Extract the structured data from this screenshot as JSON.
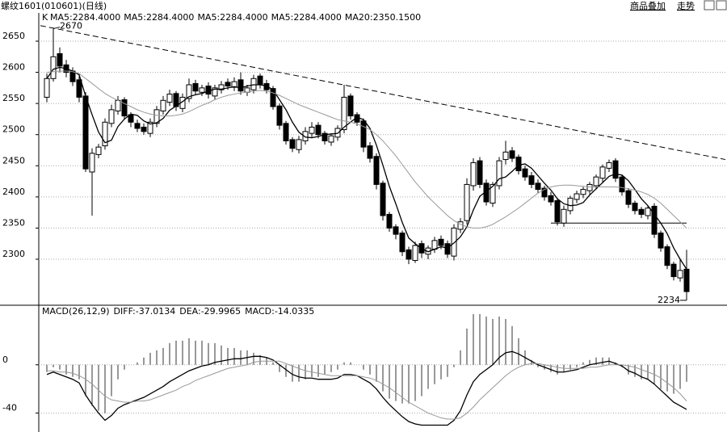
{
  "header": {
    "title": "螺纹1601(010601)(日线)",
    "buttons": [
      "商品叠加",
      "走势"
    ]
  },
  "chart_data": [
    {
      "type": "candlestick",
      "legend": [
        {
          "text": "K",
          "color": "#000000"
        },
        {
          "text": "MA5:2284.4000",
          "color": "#000000"
        },
        {
          "text": "MA5:2284.4000",
          "color": "#888888"
        },
        {
          "text": "MA5:2284.4000",
          "color": "#000000"
        },
        {
          "text": "MA5:2284.4000",
          "color": "#000000"
        },
        {
          "text": "MA20:2350.1500",
          "color": "#888888"
        }
      ],
      "ylim": [
        2230,
        2685
      ],
      "yticks": [
        2300,
        2350,
        2400,
        2450,
        2500,
        2550,
        2600,
        2650
      ],
      "grid": true,
      "up_color": "#ffffff",
      "down_color": "#000000",
      "open": [
        2560,
        2590,
        2630,
        2612,
        2602,
        2588,
        2562,
        2440,
        2468,
        2482,
        2518,
        2538,
        2556,
        2532,
        2518,
        2512,
        2502,
        2518,
        2538,
        2552,
        2566,
        2542,
        2558,
        2582,
        2568,
        2578,
        2562,
        2572,
        2584,
        2576,
        2588,
        2568,
        2572,
        2594,
        2582,
        2574,
        2546,
        2518,
        2492,
        2476,
        2490,
        2502,
        2515,
        2502,
        2488,
        2496,
        2508,
        2562,
        2532,
        2522,
        2482,
        2465,
        2422,
        2372,
        2352,
        2342,
        2315,
        2298,
        2325,
        2308,
        2316,
        2332,
        2325,
        2305,
        2348,
        2362,
        2418,
        2458,
        2422,
        2390,
        2418,
        2460,
        2474,
        2464,
        2445,
        2434,
        2422,
        2414,
        2402,
        2394,
        2358,
        2378,
        2396,
        2404,
        2410,
        2418,
        2430,
        2446,
        2458,
        2432,
        2410,
        2390,
        2380,
        2370,
        2385,
        2342,
        2320,
        2292,
        2270,
        2284
      ],
      "high": [
        2598,
        2670,
        2640,
        2620,
        2608,
        2594,
        2568,
        2478,
        2485,
        2526,
        2548,
        2562,
        2560,
        2536,
        2524,
        2518,
        2526,
        2546,
        2562,
        2572,
        2570,
        2566,
        2590,
        2588,
        2580,
        2584,
        2580,
        2586,
        2590,
        2592,
        2600,
        2580,
        2596,
        2598,
        2588,
        2578,
        2550,
        2522,
        2496,
        2498,
        2512,
        2520,
        2520,
        2506,
        2502,
        2515,
        2580,
        2566,
        2536,
        2526,
        2488,
        2470,
        2426,
        2376,
        2356,
        2346,
        2320,
        2328,
        2330,
        2322,
        2336,
        2338,
        2330,
        2356,
        2366,
        2430,
        2462,
        2464,
        2428,
        2424,
        2464,
        2490,
        2480,
        2468,
        2450,
        2440,
        2428,
        2418,
        2408,
        2398,
        2386,
        2402,
        2410,
        2416,
        2424,
        2436,
        2452,
        2460,
        2462,
        2436,
        2414,
        2394,
        2384,
        2386,
        2390,
        2346,
        2324,
        2296,
        2300,
        2315
      ],
      "low": [
        2552,
        2585,
        2600,
        2592,
        2578,
        2552,
        2440,
        2370,
        2462,
        2476,
        2512,
        2532,
        2524,
        2512,
        2504,
        2500,
        2496,
        2512,
        2532,
        2546,
        2538,
        2536,
        2552,
        2564,
        2562,
        2558,
        2556,
        2566,
        2572,
        2570,
        2564,
        2562,
        2566,
        2574,
        2566,
        2540,
        2508,
        2484,
        2472,
        2470,
        2484,
        2496,
        2494,
        2484,
        2482,
        2490,
        2502,
        2524,
        2514,
        2472,
        2455,
        2412,
        2362,
        2344,
        2332,
        2305,
        2292,
        2294,
        2302,
        2300,
        2310,
        2316,
        2302,
        2298,
        2342,
        2356,
        2410,
        2414,
        2386,
        2384,
        2412,
        2452,
        2456,
        2436,
        2426,
        2414,
        2406,
        2394,
        2386,
        2354,
        2352,
        2372,
        2390,
        2398,
        2404,
        2412,
        2424,
        2440,
        2424,
        2402,
        2382,
        2372,
        2366,
        2364,
        2334,
        2312,
        2284,
        2266,
        2264,
        2234
      ],
      "close": [
        2590,
        2625,
        2610,
        2600,
        2585,
        2560,
        2445,
        2470,
        2480,
        2520,
        2540,
        2555,
        2530,
        2520,
        2510,
        2505,
        2520,
        2540,
        2555,
        2565,
        2545,
        2560,
        2580,
        2570,
        2575,
        2565,
        2575,
        2580,
        2578,
        2585,
        2570,
        2575,
        2590,
        2580,
        2572,
        2545,
        2515,
        2490,
        2478,
        2492,
        2505,
        2512,
        2500,
        2490,
        2498,
        2510,
        2560,
        2530,
        2520,
        2480,
        2462,
        2420,
        2370,
        2350,
        2340,
        2312,
        2300,
        2322,
        2310,
        2318,
        2330,
        2322,
        2308,
        2350,
        2360,
        2420,
        2455,
        2420,
        2392,
        2420,
        2458,
        2472,
        2462,
        2442,
        2432,
        2420,
        2412,
        2400,
        2392,
        2360,
        2380,
        2398,
        2405,
        2412,
        2420,
        2432,
        2448,
        2455,
        2430,
        2408,
        2388,
        2378,
        2372,
        2382,
        2340,
        2318,
        2290,
        2272,
        2282,
        2248
      ],
      "series": [
        {
          "color": "#000000",
          "values": [
            2590,
            2605,
            2608,
            2606,
            2602,
            2596,
            2562,
            2532,
            2504,
            2487,
            2491,
            2513,
            2525,
            2533,
            2531,
            2522,
            2517,
            2519,
            2526,
            2539,
            2546,
            2553,
            2561,
            2564,
            2566,
            2570,
            2573,
            2573,
            2575,
            2577,
            2575,
            2578,
            2580,
            2580,
            2578,
            2572,
            2556,
            2540,
            2520,
            2504,
            2496,
            2495,
            2497,
            2500,
            2501,
            2502,
            2512,
            2520,
            2528,
            2524,
            2510,
            2483,
            2451,
            2417,
            2389,
            2359,
            2334,
            2325,
            2317,
            2312,
            2316,
            2320,
            2318,
            2326,
            2336,
            2352,
            2379,
            2401,
            2409,
            2417,
            2429,
            2432,
            2441,
            2451,
            2453,
            2446,
            2434,
            2422,
            2411,
            2397,
            2389,
            2386,
            2387,
            2391,
            2403,
            2413,
            2423,
            2433,
            2437,
            2435,
            2426,
            2412,
            2397,
            2386,
            2372,
            2358,
            2341,
            2318,
            2300,
            2284
          ]
        },
        {
          "color": "#999999",
          "values": [
            2600,
            2601,
            2602,
            2602,
            2601,
            2598,
            2590,
            2582,
            2574,
            2566,
            2560,
            2555,
            2550,
            2545,
            2540,
            2536,
            2533,
            2531,
            2530,
            2530,
            2531,
            2533,
            2537,
            2542,
            2547,
            2551,
            2556,
            2560,
            2563,
            2565,
            2567,
            2568,
            2570,
            2571,
            2570,
            2567,
            2563,
            2558,
            2553,
            2548,
            2544,
            2540,
            2536,
            2532,
            2528,
            2524,
            2522,
            2520,
            2517,
            2513,
            2508,
            2500,
            2490,
            2478,
            2466,
            2452,
            2438,
            2424,
            2412,
            2400,
            2390,
            2380,
            2370,
            2362,
            2356,
            2352,
            2350,
            2350,
            2352,
            2356,
            2362,
            2368,
            2375,
            2382,
            2390,
            2398,
            2406,
            2412,
            2416,
            2418,
            2419,
            2419,
            2418,
            2417,
            2416,
            2416,
            2416,
            2416,
            2416,
            2415,
            2413,
            2411,
            2408,
            2404,
            2398,
            2390,
            2380,
            2370,
            2360,
            2350
          ]
        }
      ],
      "trend_line": {
        "x": [
          -1,
          105
        ],
        "y": [
          2675,
          2460
        ],
        "color": "#000000"
      },
      "support_line": {
        "x": [
          78,
          99
        ],
        "y": [
          2358,
          2358
        ],
        "color": "#000000"
      },
      "annotations": [
        {
          "label": "2670",
          "x": 1,
          "y": 2670
        },
        {
          "label": "2234",
          "x": 99,
          "y": 2234
        }
      ]
    },
    {
      "type": "macd",
      "legend": [
        "MACD(26,12,9)",
        "DIFF:-37.0134",
        "DEA:-29.9965",
        "MACD:-14.0335"
      ],
      "ylim": [
        -55,
        48
      ],
      "yticks": [
        -40,
        0
      ],
      "series": [
        {
          "color": "#000000",
          "values": [
            -8,
            -6,
            -8,
            -10,
            -12,
            -15,
            -25,
            -33,
            -40,
            -46,
            -42,
            -36,
            -33,
            -31,
            -29,
            -27,
            -24,
            -21,
            -18,
            -14,
            -11,
            -8,
            -5,
            -3,
            -1,
            0,
            2,
            3,
            4,
            5,
            5,
            6,
            7,
            7,
            6,
            4,
            0,
            -4,
            -8,
            -10,
            -11,
            -11,
            -12,
            -12,
            -12,
            -11,
            -8,
            -8,
            -9,
            -12,
            -15,
            -20,
            -27,
            -33,
            -38,
            -43,
            -47,
            -49,
            -50,
            -50,
            -50,
            -50,
            -50,
            -46,
            -38,
            -25,
            -14,
            -8,
            -4,
            0,
            6,
            10,
            11,
            9,
            6,
            3,
            0,
            -2,
            -4,
            -6,
            -6,
            -5,
            -4,
            -2,
            0,
            1,
            2,
            3,
            1,
            -1,
            -5,
            -7,
            -10,
            -12,
            -16,
            -21,
            -26,
            -31,
            -34,
            -37
          ]
        },
        {
          "color": "#999999",
          "values": [
            -5,
            -5,
            -6,
            -6,
            -7,
            -9,
            -12,
            -16,
            -21,
            -26,
            -29,
            -30,
            -31,
            -31,
            -30,
            -30,
            -29,
            -27,
            -25,
            -23,
            -21,
            -18,
            -16,
            -13,
            -11,
            -9,
            -7,
            -5,
            -3,
            -2,
            -1,
            0,
            2,
            3,
            3,
            3,
            3,
            1,
            -1,
            -3,
            -5,
            -6,
            -7,
            -8,
            -9,
            -9,
            -9,
            -9,
            -9,
            -10,
            -11,
            -13,
            -16,
            -19,
            -23,
            -27,
            -31,
            -34,
            -37,
            -40,
            -42,
            -44,
            -45,
            -45,
            -44,
            -40,
            -35,
            -29,
            -24,
            -19,
            -14,
            -9,
            -5,
            -2,
            0,
            1,
            1,
            0,
            -1,
            -2,
            -3,
            -3,
            -3,
            -3,
            -2,
            -2,
            -1,
            0,
            0,
            0,
            -1,
            -2,
            -4,
            -6,
            -8,
            -11,
            -15,
            -19,
            -24,
            -30
          ]
        }
      ],
      "histogram": {
        "color": "#333333",
        "values": [
          -6,
          -2,
          -4,
          -8,
          -10,
          -12,
          -26,
          -34,
          -38,
          -40,
          -26,
          -12,
          -4,
          0,
          2,
          6,
          10,
          12,
          14,
          18,
          20,
          20,
          22,
          20,
          20,
          18,
          18,
          16,
          14,
          14,
          12,
          12,
          10,
          8,
          6,
          2,
          -6,
          -10,
          -14,
          -14,
          -12,
          -10,
          -10,
          -8,
          -6,
          -4,
          2,
          2,
          0,
          -4,
          -8,
          -14,
          -22,
          -28,
          -30,
          -32,
          -32,
          -30,
          -26,
          -20,
          -16,
          -12,
          -10,
          -2,
          12,
          30,
          42,
          42,
          40,
          38,
          40,
          38,
          32,
          22,
          12,
          4,
          -2,
          -4,
          -6,
          -8,
          -6,
          -4,
          -2,
          2,
          4,
          6,
          6,
          6,
          2,
          -2,
          -8,
          -10,
          -12,
          -12,
          -16,
          -20,
          -22,
          -24,
          -20,
          -14
        ]
      }
    }
  ]
}
